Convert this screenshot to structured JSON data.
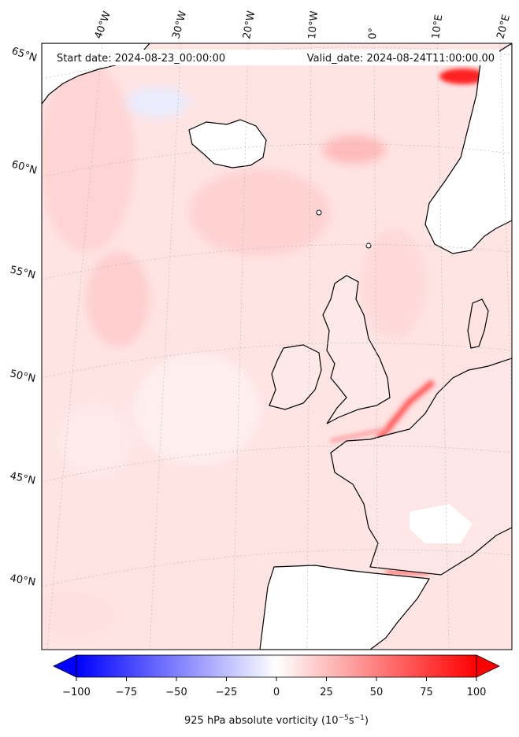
{
  "header": {
    "start_date": "Start date: 2024-08-23_00:00:00",
    "valid_date": "Valid_date: 2024-08-24T11:00:00.00"
  },
  "map": {
    "lon_labels": [
      "40°W",
      "30°W",
      "20°W",
      "10°W",
      "0°",
      "10°E",
      "20°E"
    ],
    "lat_labels": [
      "65°N",
      "60°N",
      "55°N",
      "50°N",
      "45°N",
      "40°N"
    ]
  },
  "colorbar": {
    "ticks": [
      "−100",
      "−75",
      "−50",
      "−25",
      "0",
      "25",
      "50",
      "75",
      "100"
    ],
    "label": "925 hPa absolute vorticity (10",
    "label_exp1": "−5",
    "label_mid": "s",
    "label_exp2": "−1",
    "label_end": ")",
    "colors": {
      "min": "#0000ff",
      "mid": "#ffffff",
      "max": "#ff0000"
    },
    "range": [
      -100,
      100
    ]
  }
}
